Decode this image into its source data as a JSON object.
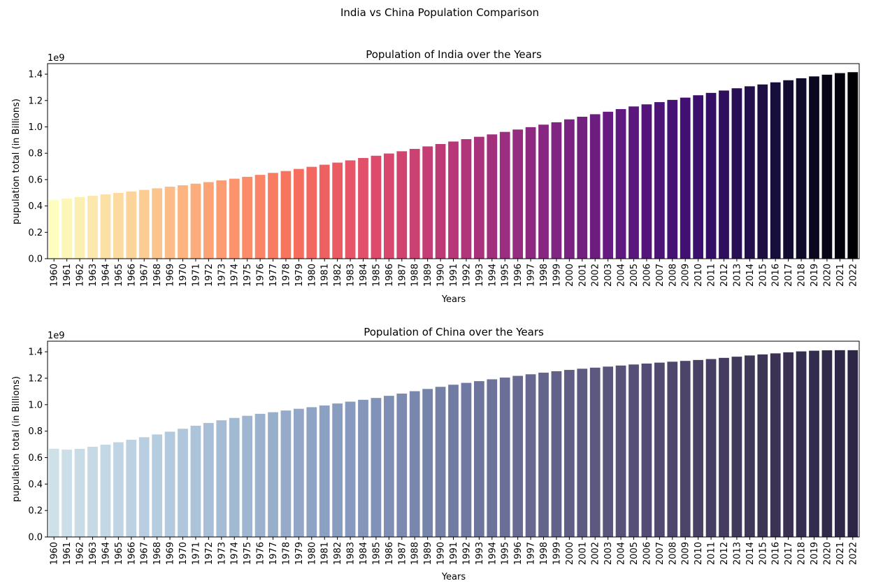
{
  "figure": {
    "suptitle": "India vs China Population Comparison"
  },
  "chart_data": [
    {
      "type": "bar",
      "title": "Population of India over the Years",
      "xlabel": "Years",
      "ylabel": "pupulation total (in Billions)",
      "offset_text": "1e9",
      "ylim": [
        0,
        1.48
      ],
      "yticks": [
        "0.0",
        "0.2",
        "0.4",
        "0.6",
        "0.8",
        "1.0",
        "1.2",
        "1.4"
      ],
      "grid": false,
      "palette": "magma_r",
      "categories": [
        "1960",
        "1961",
        "1962",
        "1963",
        "1964",
        "1965",
        "1966",
        "1967",
        "1968",
        "1969",
        "1970",
        "1971",
        "1972",
        "1973",
        "1974",
        "1975",
        "1976",
        "1977",
        "1978",
        "1979",
        "1980",
        "1981",
        "1982",
        "1983",
        "1984",
        "1985",
        "1986",
        "1987",
        "1988",
        "1989",
        "1990",
        "1991",
        "1992",
        "1993",
        "1994",
        "1995",
        "1996",
        "1997",
        "1998",
        "1999",
        "2000",
        "2001",
        "2002",
        "2003",
        "2004",
        "2005",
        "2006",
        "2007",
        "2008",
        "2009",
        "2010",
        "2011",
        "2012",
        "2013",
        "2014",
        "2015",
        "2016",
        "2017",
        "2018",
        "2019",
        "2020",
        "2021",
        "2022"
      ],
      "values": [
        0.445,
        0.456,
        0.467,
        0.477,
        0.488,
        0.499,
        0.51,
        0.522,
        0.534,
        0.546,
        0.557,
        0.569,
        0.581,
        0.594,
        0.607,
        0.621,
        0.636,
        0.651,
        0.665,
        0.681,
        0.697,
        0.713,
        0.729,
        0.746,
        0.764,
        0.781,
        0.798,
        0.815,
        0.833,
        0.852,
        0.87,
        0.889,
        0.907,
        0.925,
        0.943,
        0.962,
        0.98,
        0.998,
        1.017,
        1.035,
        1.057,
        1.077,
        1.096,
        1.115,
        1.135,
        1.155,
        1.171,
        1.188,
        1.205,
        1.222,
        1.24,
        1.258,
        1.276,
        1.293,
        1.308,
        1.322,
        1.338,
        1.354,
        1.369,
        1.383,
        1.396,
        1.408,
        1.415
      ]
    },
    {
      "type": "bar",
      "title": "Population of China over the Years",
      "xlabel": "Years",
      "ylabel": "pupulation total (in Billions)",
      "offset_text": "1e9",
      "ylim": [
        0,
        1.48
      ],
      "yticks": [
        "0.0",
        "0.2",
        "0.4",
        "0.6",
        "0.8",
        "1.0",
        "1.2",
        "1.4"
      ],
      "grid": false,
      "palette": "ch:s=.25,rot=-.25",
      "categories": [
        "1960",
        "1961",
        "1962",
        "1963",
        "1964",
        "1965",
        "1966",
        "1967",
        "1968",
        "1969",
        "1970",
        "1971",
        "1972",
        "1973",
        "1974",
        "1975",
        "1976",
        "1977",
        "1978",
        "1979",
        "1980",
        "1981",
        "1982",
        "1983",
        "1984",
        "1985",
        "1986",
        "1987",
        "1988",
        "1989",
        "1990",
        "1991",
        "1992",
        "1993",
        "1994",
        "1995",
        "1996",
        "1997",
        "1998",
        "1999",
        "2000",
        "2001",
        "2002",
        "2003",
        "2004",
        "2005",
        "2006",
        "2007",
        "2008",
        "2009",
        "2010",
        "2011",
        "2012",
        "2013",
        "2014",
        "2015",
        "2016",
        "2017",
        "2018",
        "2019",
        "2020",
        "2021",
        "2022"
      ],
      "values": [
        0.667,
        0.66,
        0.666,
        0.682,
        0.698,
        0.716,
        0.735,
        0.754,
        0.775,
        0.796,
        0.818,
        0.841,
        0.862,
        0.882,
        0.9,
        0.916,
        0.931,
        0.943,
        0.956,
        0.969,
        0.981,
        0.994,
        1.009,
        1.023,
        1.037,
        1.051,
        1.067,
        1.084,
        1.102,
        1.119,
        1.135,
        1.151,
        1.165,
        1.178,
        1.192,
        1.205,
        1.218,
        1.23,
        1.242,
        1.253,
        1.263,
        1.272,
        1.28,
        1.288,
        1.296,
        1.304,
        1.311,
        1.318,
        1.325,
        1.331,
        1.338,
        1.345,
        1.354,
        1.363,
        1.372,
        1.38,
        1.388,
        1.396,
        1.403,
        1.408,
        1.411,
        1.412,
        1.412
      ]
    }
  ]
}
